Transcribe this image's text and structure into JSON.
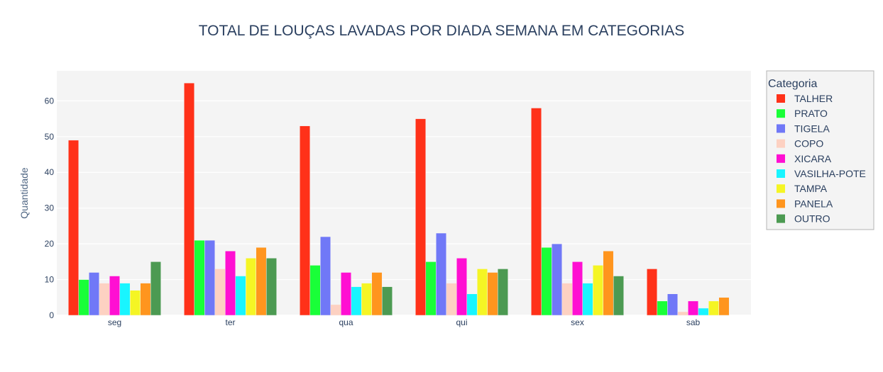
{
  "chart_data": {
    "type": "bar",
    "title": "TOTAL DE LOUÇAS LAVADAS POR DIADA SEMANA EM CATEGORIAS",
    "xlabel": "",
    "ylabel": "Quantidade",
    "categories": [
      "seg",
      "ter",
      "qua",
      "qui",
      "sex",
      "sab"
    ],
    "ylim": [
      0,
      68.4
    ],
    "yticks": [
      0,
      10,
      20,
      30,
      40,
      50,
      60
    ],
    "grid": true,
    "legend_title": "Categoria",
    "legend_position": "right",
    "series": [
      {
        "name": "TALHER",
        "color": "#ff3119",
        "values": [
          49,
          65,
          53,
          55,
          58,
          13
        ]
      },
      {
        "name": "PRATO",
        "color": "#19ff38",
        "values": [
          10,
          21,
          14,
          15,
          19,
          4
        ]
      },
      {
        "name": "TIGELA",
        "color": "#7078f7",
        "values": [
          12,
          21,
          22,
          23,
          20,
          6
        ]
      },
      {
        "name": "COPO",
        "color": "#fdd1c2",
        "values": [
          9,
          13,
          3,
          9,
          9,
          1
        ]
      },
      {
        "name": "XICARA",
        "color": "#ff0fd2",
        "values": [
          11,
          18,
          12,
          16,
          15,
          4
        ]
      },
      {
        "name": "VASILHA-POTE",
        "color": "#19f5ff",
        "values": [
          9,
          11,
          8,
          6,
          9,
          2
        ]
      },
      {
        "name": "TAMPA",
        "color": "#f5f524",
        "values": [
          7,
          16,
          9,
          13,
          14,
          4
        ]
      },
      {
        "name": "PANELA",
        "color": "#ff951e",
        "values": [
          9,
          19,
          12,
          12,
          18,
          5
        ]
      },
      {
        "name": "OUTRO",
        "color": "#4c9a52",
        "values": [
          15,
          16,
          8,
          13,
          11,
          0
        ]
      }
    ]
  }
}
